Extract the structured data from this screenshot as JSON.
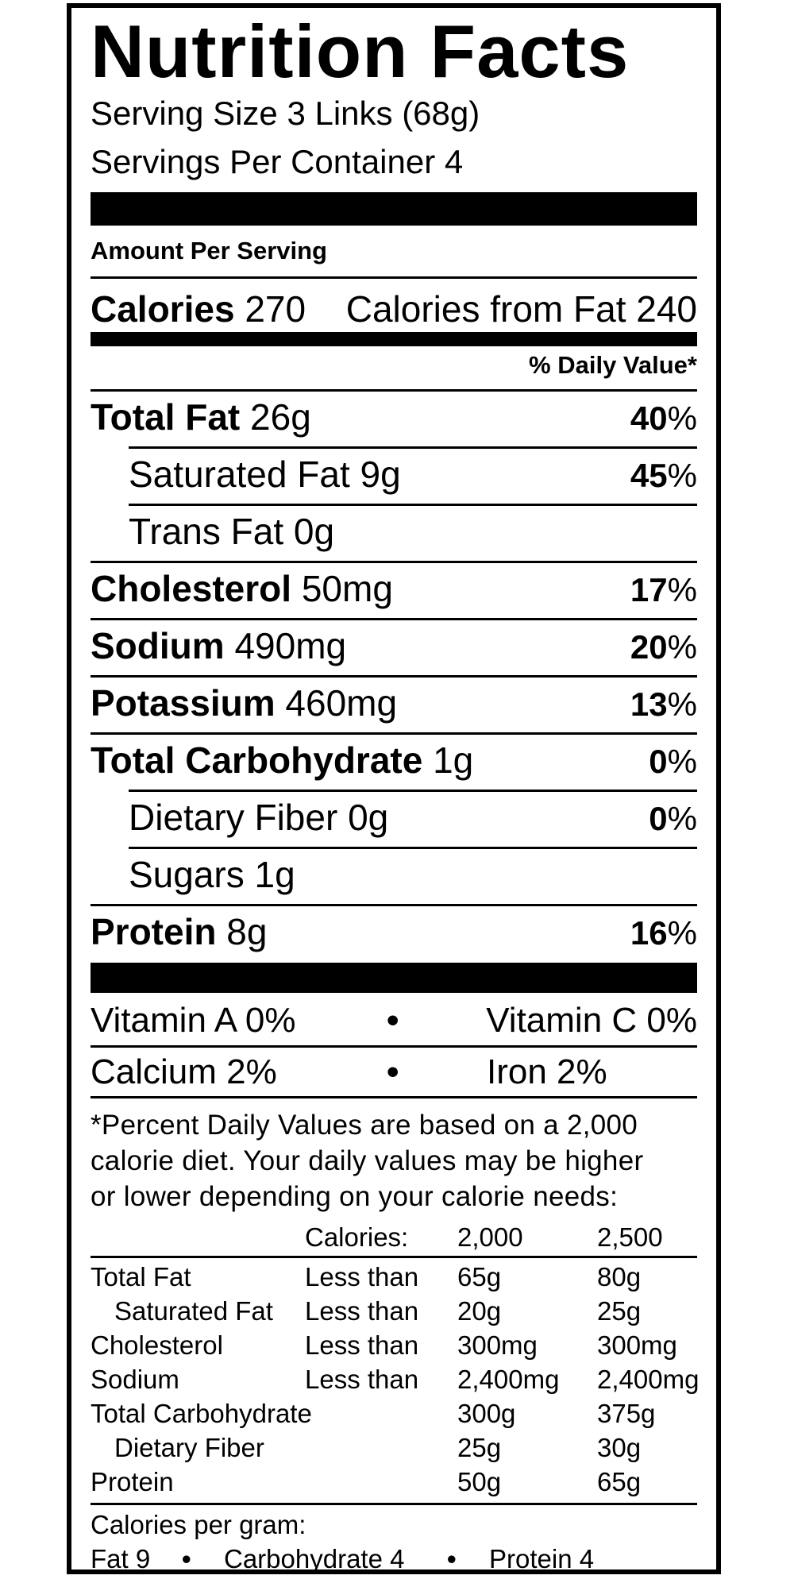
{
  "title": "Nutrition Facts",
  "serving_size": "Serving Size 3 Links (68g)",
  "servings_per_container": "Servings Per Container 4",
  "amount_per_serving": "Amount Per Serving",
  "calories": {
    "label": "Calories",
    "value": "270",
    "from_fat": "Calories from Fat 240"
  },
  "dv_header": "% Daily Value*",
  "nutrients": [
    {
      "name": "Total Fat",
      "amount": "26g",
      "dv": "40",
      "pct": "%"
    },
    {
      "name": "Saturated Fat",
      "amount": "9g",
      "dv": "45",
      "pct": "%"
    },
    {
      "name": "Trans Fat",
      "amount": "0g"
    },
    {
      "name": "Cholesterol",
      "amount": "50mg",
      "dv": "17",
      "pct": "%"
    },
    {
      "name": "Sodium",
      "amount": "490mg",
      "dv": "20",
      "pct": "%"
    },
    {
      "name": "Potassium",
      "amount": "460mg",
      "dv": "13",
      "pct": "%"
    },
    {
      "name": "Total Carbohydrate",
      "amount": "1g",
      "dv": "0",
      "pct": "%"
    },
    {
      "name": "Dietary Fiber",
      "amount": "0g",
      "dv": "0",
      "pct": "%"
    },
    {
      "name": "Sugars",
      "amount": "1g"
    },
    {
      "name": "Protein",
      "amount": "8g",
      "dv": "16",
      "pct": "%"
    }
  ],
  "vitamins": [
    {
      "left": "Vitamin A 0%",
      "right": "Vitamin C 0%"
    },
    {
      "left": "Calcium 2%",
      "right": "Iron 2%"
    }
  ],
  "bullet": "•",
  "footnote": [
    "*Percent Daily Values are based on a 2,000",
    "calorie diet. Your daily values may be higher",
    "or lower depending on your calorie needs:"
  ],
  "dv_table": {
    "header": [
      "Calories:",
      "2,000",
      "2,500"
    ],
    "rows": [
      [
        "Total Fat",
        "Less than",
        "65g",
        "80g"
      ],
      [
        "Saturated Fat",
        "Less than",
        "20g",
        "25g"
      ],
      [
        "Cholesterol",
        "Less than",
        "300mg",
        "300mg"
      ],
      [
        "Sodium",
        "Less than",
        "2,400mg",
        "2,400mg"
      ],
      [
        "Total Carbohydrate",
        "",
        "300g",
        "375g"
      ],
      [
        "Dietary Fiber",
        "",
        "25g",
        "30g"
      ],
      [
        "Protein",
        "",
        "50g",
        "65g"
      ]
    ]
  },
  "calories_per_gram": {
    "label": "Calories per gram:",
    "fat": "Fat 9",
    "carb": "Carbohydrate 4",
    "protein": "Protein 4"
  }
}
